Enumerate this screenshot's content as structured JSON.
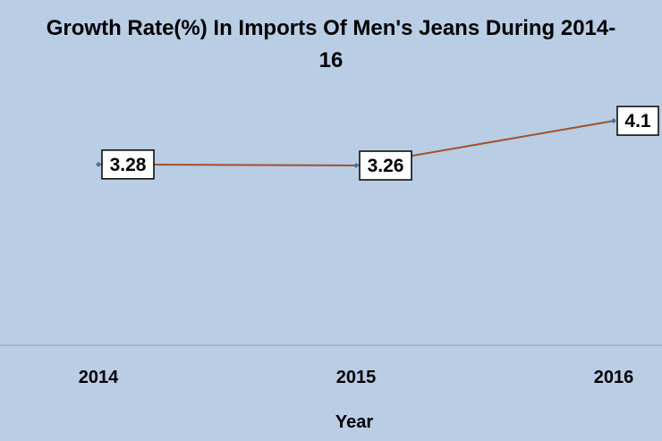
{
  "chart_data": {
    "type": "line",
    "title_line1": "Growth Rate(%) In Imports Of Men's Jeans During 2014-",
    "title_line2": "16",
    "xlabel": "Year",
    "ylabel": "",
    "categories": [
      "2014",
      "2015",
      "2016"
    ],
    "series": [
      {
        "values": [
          3.28,
          3.26,
          4.1
        ]
      }
    ],
    "data_labels": [
      "3.28",
      "3.26",
      "4.1"
    ],
    "ylim": [
      0,
      5
    ],
    "grid": false,
    "legend": "none",
    "colors": {
      "background": "#b9cde5",
      "line": "#a0522d",
      "marker": "#4f6fa0",
      "axis": "#8a9bb3"
    }
  }
}
